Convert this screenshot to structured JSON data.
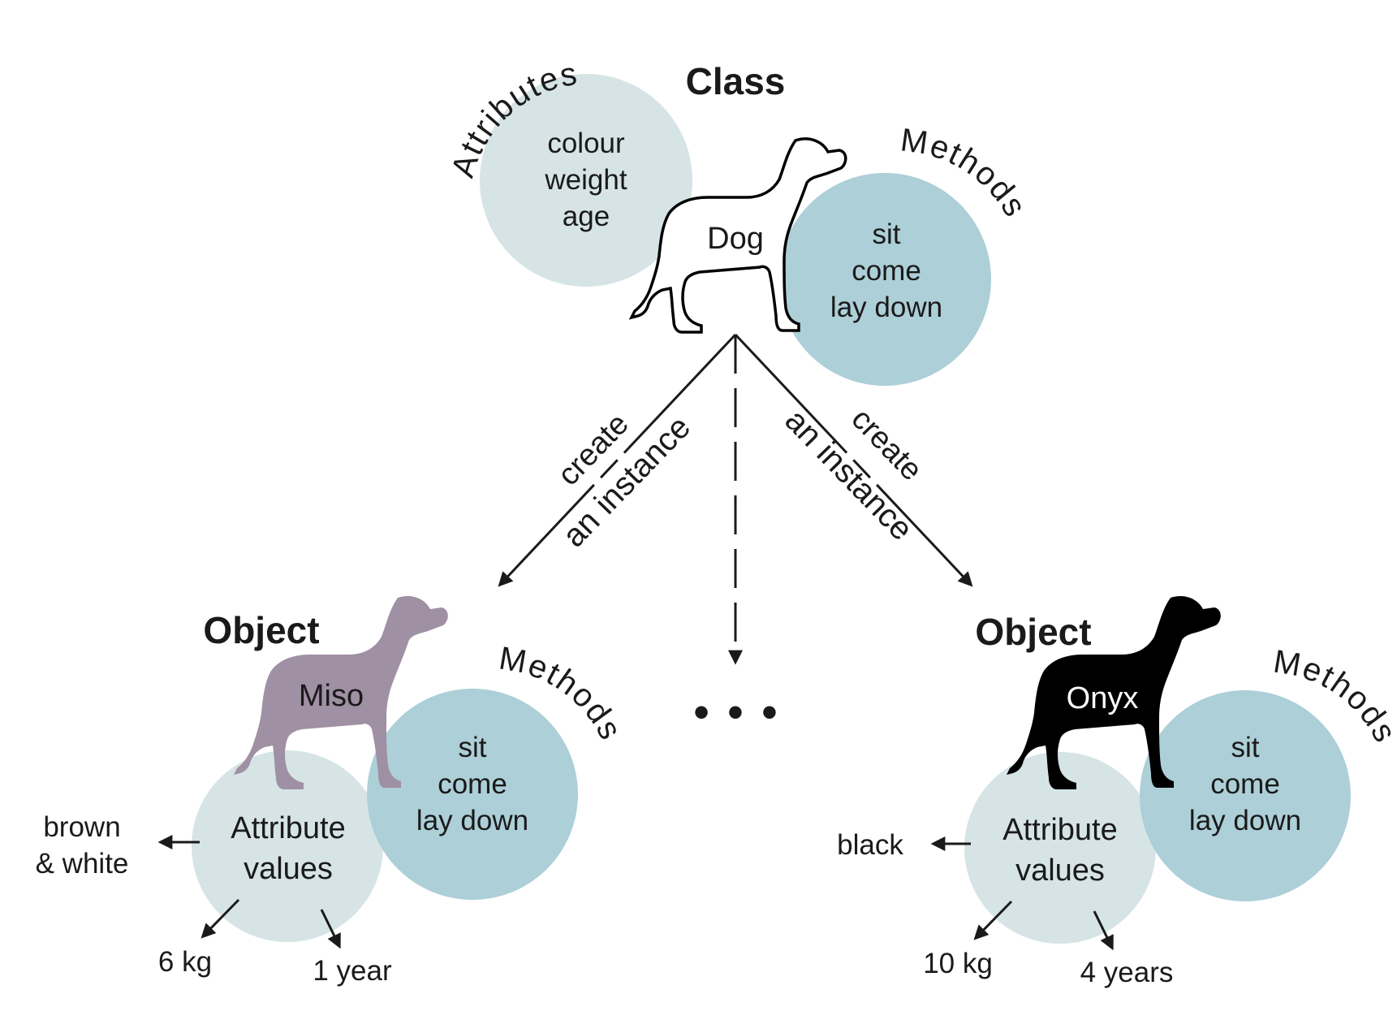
{
  "class_section": {
    "title": "Class",
    "attributes_label": "Attributes",
    "methods_label": "Methods",
    "dog_name": "Dog",
    "attributes": [
      "colour",
      "weight",
      "age"
    ],
    "methods": [
      "sit",
      "come",
      "lay down"
    ]
  },
  "arrows": {
    "left_line1": "create",
    "left_line2_prefix": "an",
    "left_line2_bold": "instance",
    "right_line1": "create",
    "right_line2_prefix": "an",
    "right_line2_bold": "instance",
    "ellipsis": "• • •"
  },
  "objects": [
    {
      "title": "Object",
      "name": "Miso",
      "methods_label": "Methods",
      "methods": [
        "sit",
        "come",
        "lay down"
      ],
      "attribute_label_line1": "Attribute",
      "attribute_label_line2": "values",
      "colour_value_line1": "brown",
      "colour_value_line2": "& white",
      "weight_value": "6 kg",
      "age_value": "1 year",
      "dog_color": "#9f90a3"
    },
    {
      "title": "Object",
      "name": "Onyx",
      "methods_label": "Methods",
      "methods": [
        "sit",
        "come",
        "lay down"
      ],
      "attribute_label_line1": "Attribute",
      "attribute_label_line2": "values",
      "colour_value": "black",
      "weight_value": "10 kg",
      "age_value": "4 years",
      "dog_color": "#000000"
    }
  ],
  "colors": {
    "attribute_circle": "#d6e4e6",
    "methods_circle": "#adcfd7",
    "ink": "#1a1a1a"
  }
}
